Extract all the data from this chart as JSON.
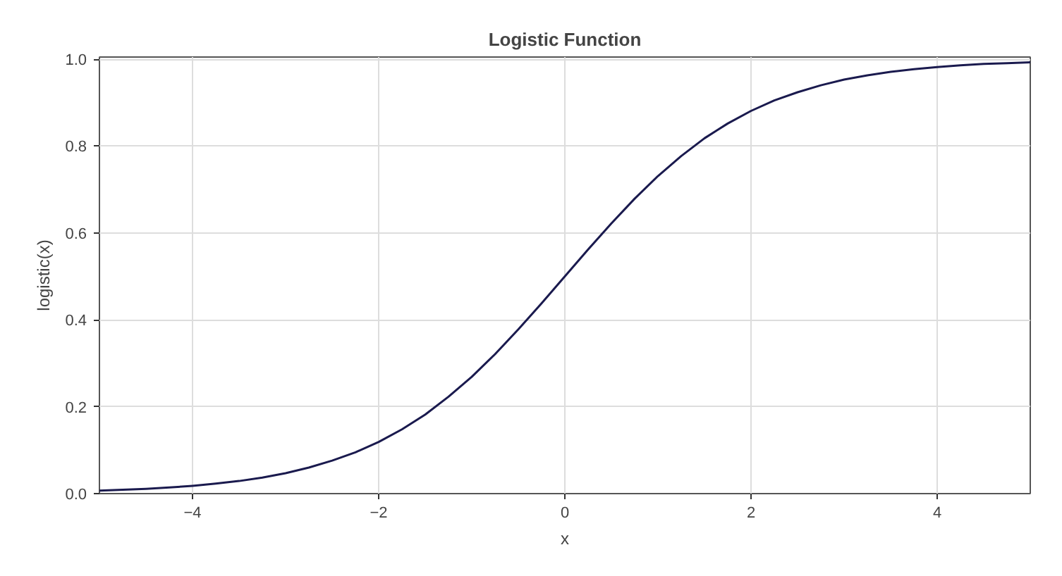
{
  "chart_data": {
    "type": "line",
    "title": "Logistic Function",
    "xlabel": "x",
    "ylabel": "logistic(x)",
    "x": [
      -5,
      -4.75,
      -4.5,
      -4.25,
      -4,
      -3.75,
      -3.5,
      -3.25,
      -3,
      -2.75,
      -2.5,
      -2.25,
      -2,
      -1.75,
      -1.5,
      -1.25,
      -1,
      -0.75,
      -0.5,
      -0.25,
      0,
      0.25,
      0.5,
      0.75,
      1,
      1.25,
      1.5,
      1.75,
      2,
      2.25,
      2.5,
      2.75,
      3,
      3.25,
      3.5,
      3.75,
      4,
      4.25,
      4.5,
      4.75,
      5
    ],
    "series": [
      {
        "color": "#1a1a4e",
        "values": [
          0.007,
          0.009,
          0.011,
          0.014,
          0.018,
          0.023,
          0.029,
          0.037,
          0.047,
          0.06,
          0.076,
          0.095,
          0.119,
          0.148,
          0.182,
          0.223,
          0.269,
          0.321,
          0.378,
          0.438,
          0.5,
          0.562,
          0.622,
          0.679,
          0.731,
          0.777,
          0.818,
          0.852,
          0.881,
          0.905,
          0.924,
          0.94,
          0.953,
          0.963,
          0.971,
          0.977,
          0.982,
          0.986,
          0.989,
          0.991,
          0.993
        ]
      }
    ],
    "xlim": [
      -5,
      5
    ],
    "ylim": [
      0,
      1.005
    ],
    "xticks": [
      -4,
      -2,
      0,
      2,
      4
    ],
    "yticks": [
      {
        "value": 0,
        "label": "0.0"
      },
      {
        "value": 0.2,
        "label": "0.2"
      },
      {
        "value": 0.4,
        "label": "0.4"
      },
      {
        "value": 0.6,
        "label": "0.6"
      },
      {
        "value": 0.8,
        "label": "0.8"
      },
      {
        "value": 1,
        "label": "1.0"
      }
    ],
    "grid": true,
    "line_style": "solid",
    "marker": "none"
  }
}
